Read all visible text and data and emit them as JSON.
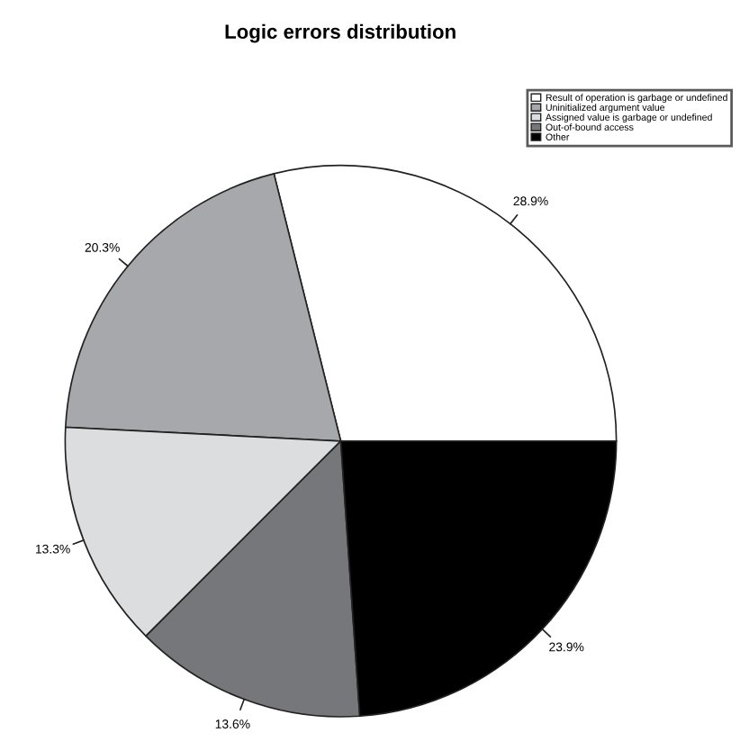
{
  "chart_data": {
    "type": "pie",
    "title": "Logic errors distribution",
    "categories": [
      "Result of operation is garbage or undefined",
      "Uninitialized argument value",
      "Assigned value is garbage or undefined",
      "Out-of-bound access",
      "Other"
    ],
    "values": [
      28.9,
      20.3,
      13.3,
      13.6,
      23.9
    ],
    "value_labels": [
      "28.9%",
      "20.3%",
      "13.3%",
      "13.6%",
      "23.9%"
    ],
    "colors": [
      "#ffffff",
      "#a7a8ab",
      "#dcdddf",
      "#76777b",
      "#000000"
    ],
    "legend": "top right"
  }
}
